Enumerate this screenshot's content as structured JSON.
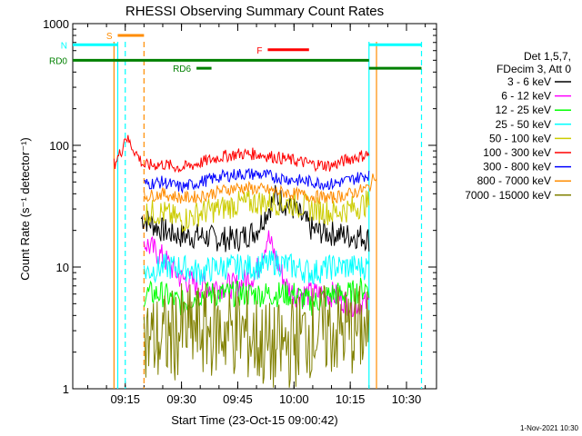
{
  "chart_data": {
    "type": "line",
    "title": "RHESSI Observing Summary Count Rates",
    "xlabel": "Start Time (23-Oct-15 09:00:42)",
    "ylabel": "Count Rate (s⁻¹ detector⁻¹)",
    "yscale": "log",
    "ylim": [
      1,
      1000
    ],
    "xlim": [
      "09:01",
      "10:38"
    ],
    "x_ticks": [
      "09:15",
      "09:30",
      "09:45",
      "10:00",
      "10:15",
      "10:30"
    ],
    "y_ticks": [
      "1",
      "10",
      "100",
      "1000"
    ],
    "grid": false,
    "legend_position": "right",
    "legend_header": [
      "Det 1,5,7,",
      "FDecim 3, Att 0"
    ],
    "footer_date": "1-Nov-2021 10:30",
    "series": [
      {
        "name": "3 - 6 keV",
        "color": "#000000",
        "x": [
          "09:11",
          "09:13",
          "09:15",
          "09:19",
          "09:20",
          "09:25",
          "09:30",
          "09:35",
          "09:40",
          "09:45",
          "09:50",
          "09:55",
          "10:00",
          "10:05",
          "10:10",
          "10:15",
          "10:18",
          "10:20"
        ],
        "values": [
          null,
          null,
          null,
          null,
          25,
          20,
          18,
          18,
          17,
          17,
          20,
          38,
          30,
          20,
          19,
          18,
          18,
          17
        ]
      },
      {
        "name": "6 - 12 keV",
        "color": "#ff00ff",
        "x": [
          "09:20",
          "09:25",
          "09:30",
          "09:35",
          "09:40",
          "09:45",
          "09:50",
          "09:53",
          "09:55",
          "09:58",
          "10:00",
          "10:05",
          "10:10",
          "10:15",
          "10:20"
        ],
        "values": [
          16,
          12,
          8,
          7,
          7,
          7,
          9,
          18,
          12,
          7,
          6,
          6,
          6,
          5,
          5
        ]
      },
      {
        "name": "12 - 25 keV",
        "color": "#00ff00",
        "x": [
          "09:20",
          "09:25",
          "09:30",
          "09:35",
          "09:40",
          "09:45",
          "09:50",
          "09:55",
          "10:00",
          "10:05",
          "10:10",
          "10:15",
          "10:20"
        ],
        "values": [
          6,
          6,
          5,
          6,
          6,
          6,
          6,
          6,
          6,
          5,
          6,
          6,
          7
        ]
      },
      {
        "name": "25 - 50 keV",
        "color": "#00ffff",
        "x": [
          "09:20",
          "09:25",
          "09:30",
          "09:35",
          "09:40",
          "09:45",
          "09:50",
          "09:55",
          "10:00",
          "10:05",
          "10:10",
          "10:15",
          "10:20"
        ],
        "values": [
          9,
          10,
          10,
          9,
          10,
          10,
          10,
          11,
          10,
          9,
          10,
          10,
          10
        ]
      },
      {
        "name": "50 - 100 keV",
        "color": "#cccc00",
        "x": [
          "09:20",
          "09:25",
          "09:30",
          "09:35",
          "09:40",
          "09:45",
          "09:50",
          "09:55",
          "10:00",
          "10:05",
          "10:10",
          "10:15",
          "10:20"
        ],
        "values": [
          28,
          28,
          24,
          28,
          30,
          33,
          34,
          34,
          33,
          30,
          28,
          30,
          34
        ]
      },
      {
        "name": "100 - 300 keV",
        "color": "#ff0000",
        "x": [
          "09:12",
          "09:14",
          "09:15",
          "09:20",
          "09:25",
          "09:30",
          "09:35",
          "09:40",
          "09:45",
          "09:50",
          "09:55",
          "10:00",
          "10:05",
          "10:10",
          "10:15",
          "10:20"
        ],
        "values": [
          70,
          90,
          120,
          68,
          70,
          65,
          72,
          80,
          85,
          85,
          80,
          75,
          70,
          68,
          78,
          85
        ]
      },
      {
        "name": "300 - 800 keV",
        "color": "#0000ff",
        "x": [
          "09:20",
          "09:25",
          "09:30",
          "09:35",
          "09:40",
          "09:45",
          "09:50",
          "09:55",
          "10:00",
          "10:05",
          "10:10",
          "10:15",
          "10:20"
        ],
        "values": [
          48,
          50,
          45,
          50,
          55,
          58,
          58,
          55,
          52,
          50,
          48,
          52,
          58
        ]
      },
      {
        "name": "800 - 7000 keV",
        "color": "#ff8c00",
        "x": [
          "09:20",
          "09:25",
          "09:30",
          "09:35",
          "09:40",
          "09:45",
          "09:50",
          "09:55",
          "10:00",
          "10:05",
          "10:10",
          "10:15",
          "10:20",
          "10:22"
        ],
        "values": [
          38,
          40,
          37,
          38,
          42,
          45,
          44,
          42,
          40,
          38,
          37,
          40,
          45,
          60
        ]
      },
      {
        "name": "7000 - 15000 keV",
        "color": "#808000",
        "x": [
          "09:20",
          "09:25",
          "09:30",
          "09:35",
          "09:40",
          "09:45",
          "09:50",
          "09:55",
          "10:00",
          "10:05",
          "10:10",
          "10:15",
          "10:20"
        ],
        "values": [
          2.5,
          2.5,
          3,
          3,
          3,
          3,
          2.5,
          2,
          2.5,
          3,
          3,
          3,
          3
        ]
      }
    ],
    "annotations": [
      {
        "label": "S",
        "color": "#ff8c00",
        "x_range": [
          "09:13",
          "09:20"
        ],
        "y": 800
      },
      {
        "label": "N",
        "color": "#00ffff",
        "x_range": [
          "09:01",
          "09:13"
        ],
        "y": 670
      },
      {
        "label": "RD0",
        "color": "#008000",
        "x_range": [
          "09:01",
          "10:20"
        ],
        "y": 500
      },
      {
        "label": "RD6",
        "color": "#008000",
        "x_range": [
          "09:34",
          "09:38"
        ],
        "y": 430
      },
      {
        "label": "F",
        "color": "#ff0000",
        "x_range": [
          "09:53",
          "10:04"
        ],
        "y": 610
      },
      {
        "label": "",
        "color": "#00ffff",
        "x_range": [
          "10:20",
          "10:34"
        ],
        "y": 670
      },
      {
        "label": "",
        "color": "#008000",
        "x_range": [
          "10:20",
          "10:34"
        ],
        "y": 430
      }
    ],
    "vertical_markers": [
      {
        "x": "09:13",
        "color": "#00ffff",
        "style": "solid"
      },
      {
        "x": "09:15",
        "color": "#00ffff",
        "style": "dashed"
      },
      {
        "x": "09:12",
        "color": "#ff8c00",
        "style": "solid"
      },
      {
        "x": "09:20",
        "color": "#ff8c00",
        "style": "dashed"
      },
      {
        "x": "10:20",
        "color": "#00ffff",
        "style": "solid"
      },
      {
        "x": "10:34",
        "color": "#00ffff",
        "style": "dashed"
      },
      {
        "x": "10:22",
        "color": "#ff8c00",
        "style": "solid"
      }
    ]
  }
}
